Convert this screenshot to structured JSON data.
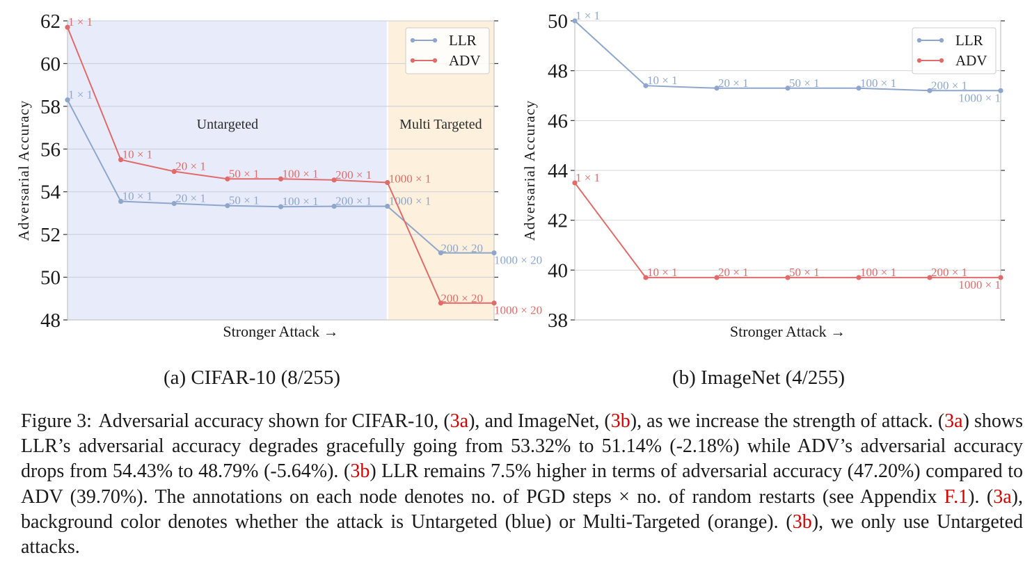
{
  "chart_data": [
    {
      "type": "line",
      "xlabel": "Stronger Attack →",
      "ylabel": "Adversarial Accuracy",
      "ylim": [
        48,
        62
      ],
      "yticks": [
        48,
        50,
        52,
        54,
        56,
        58,
        60,
        62
      ],
      "grid": true,
      "legend": "top-right",
      "x": [
        "1 × 1",
        "10 × 1",
        "20 × 1",
        "50 × 1",
        "100 × 1",
        "200 × 1",
        "1000 × 1",
        "200 × 20",
        "1000 × 20"
      ],
      "regions": [
        {
          "label": "Untargeted",
          "from": 0,
          "to": 6,
          "color": "#e8ebfa"
        },
        {
          "label": "Multi Targeted",
          "from": 6,
          "to": 8,
          "color": "#fdf0dc"
        }
      ],
      "series": [
        {
          "name": "LLR",
          "color": "#8fa6cc",
          "values": [
            58.3,
            53.55,
            53.45,
            53.35,
            53.3,
            53.32,
            53.32,
            51.14,
            51.14
          ],
          "labels": [
            "1 × 1",
            "10 × 1",
            "20 × 1",
            "50 × 1",
            "100 × 1",
            "200 × 1",
            "1000 × 1",
            "200 × 20",
            "1000 × 20"
          ]
        },
        {
          "name": "ADV",
          "color": "#e06b6b",
          "values": [
            61.7,
            55.5,
            54.95,
            54.6,
            54.6,
            54.55,
            54.43,
            48.79,
            48.79
          ],
          "labels": [
            "1 × 1",
            "10 × 1",
            "20 × 1",
            "50 × 1",
            "100 × 1",
            "200 × 1",
            "1000 × 1",
            "200 × 20",
            "1000 × 20"
          ]
        }
      ]
    },
    {
      "type": "line",
      "xlabel": "Stronger Attack →",
      "ylabel": "Adversarial Accuracy",
      "ylim": [
        38,
        50
      ],
      "yticks": [
        38,
        40,
        42,
        44,
        46,
        48,
        50
      ],
      "grid": true,
      "legend": "top-right",
      "x": [
        "1 × 1",
        "10 × 1",
        "20 × 1",
        "50 × 1",
        "100 × 1",
        "200 × 1",
        "1000 × 1"
      ],
      "series": [
        {
          "name": "LLR",
          "color": "#8fa6cc",
          "values": [
            50.0,
            47.4,
            47.3,
            47.3,
            47.3,
            47.2,
            47.2
          ],
          "labels": [
            "1 × 1",
            "10 × 1",
            "20 × 1",
            "50 × 1",
            "100 × 1",
            "200 × 1",
            "1000 × 1"
          ]
        },
        {
          "name": "ADV",
          "color": "#e06b6b",
          "values": [
            43.5,
            39.7,
            39.7,
            39.7,
            39.7,
            39.7,
            39.7
          ],
          "labels": [
            "1 × 1",
            "10 × 1",
            "20 × 1",
            "50 × 1",
            "100 × 1",
            "200 × 1",
            "1000 × 1"
          ]
        }
      ]
    }
  ],
  "subcaptions": {
    "a": "(a) CIFAR-10 (8/255)",
    "b": "(b) ImageNet (4/255)"
  },
  "caption": {
    "label": "Figure 3:",
    "p1": " Adversarial accuracy shown for CIFAR-10, (",
    "r1": "3a",
    "p2": "), and ImageNet, (",
    "r2": "3b",
    "p3": "), as we increase the strength of attack. (",
    "r3": "3a",
    "p4": ") shows LLR’s adversarial accuracy degrades gracefully going from 53.32% to 51.14% (-2.18%) while ADV’s adversarial accuracy drops from 54.43% to 48.79% (-5.64%). (",
    "r4": "3b",
    "p5": ") LLR remains 7.5% higher in terms of adversarial accuracy (47.20%) compared to ADV (39.70%). The annotations on each node denotes no. of PGD steps × no. of random restarts (see Appendix ",
    "r5": "F.1",
    "p6": "). (",
    "r6": "3a",
    "p7": "), background color denotes whether the attack is Untargeted (blue) or Multi-Targeted (orange). (",
    "r7": "3b",
    "p8": "), we only use Untargeted attacks."
  }
}
